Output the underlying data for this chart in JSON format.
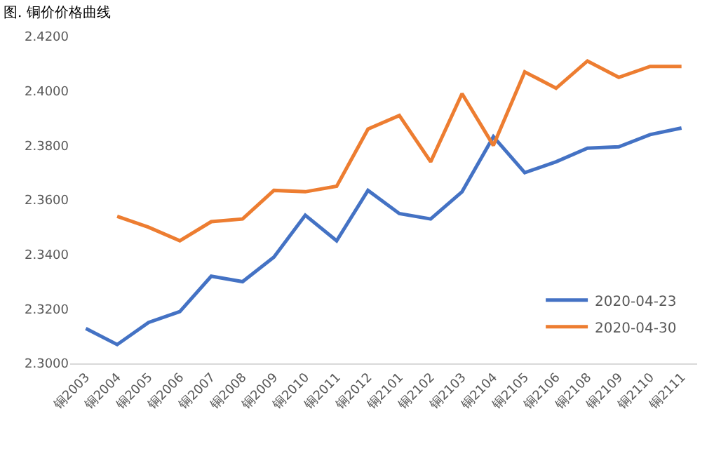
{
  "chart_data": {
    "type": "line",
    "title": "图. 铜价价格曲线",
    "categories": [
      "铜2003",
      "铜2004",
      "铜2005",
      "铜2006",
      "铜2007",
      "铜2008",
      "铜2009",
      "铜2010",
      "铜2011",
      "铜2012",
      "铜2101",
      "铜2102",
      "铜2103",
      "铜2104",
      "铜2105",
      "铜2106",
      "铜2108",
      "铜2109",
      "铜2110",
      "铜2111"
    ],
    "series": [
      {
        "name": "2020-04-23",
        "color": "#4472c4",
        "values": [
          2.3128,
          2.3069,
          2.315,
          2.319,
          2.332,
          2.33,
          2.339,
          2.3544,
          2.345,
          2.3635,
          2.355,
          2.353,
          2.363,
          2.3832,
          2.37,
          2.374,
          2.379,
          2.3795,
          2.384,
          2.3864
        ]
      },
      {
        "name": "2020-04-30",
        "color": "#ed7d31",
        "values": [
          null,
          2.354,
          2.35,
          2.345,
          2.352,
          2.353,
          2.3635,
          2.363,
          2.365,
          2.386,
          2.391,
          2.374,
          2.399,
          2.38,
          2.407,
          2.401,
          2.411,
          2.405,
          2.409,
          2.409
        ]
      }
    ],
    "ylim": [
      2.3,
      2.42
    ],
    "yticks": [
      {
        "value": 2.3,
        "label": "2.3000"
      },
      {
        "value": 2.32,
        "label": "2.3200"
      },
      {
        "value": 2.34,
        "label": "2.3400"
      },
      {
        "value": 2.36,
        "label": "2.3600"
      },
      {
        "value": 2.38,
        "label": "2.3800"
      },
      {
        "value": 2.4,
        "label": "2.4000"
      },
      {
        "value": 2.42,
        "label": "2.4200"
      }
    ],
    "grid": false,
    "legend": "bottom right",
    "marker": "none",
    "line_style": "solid"
  }
}
